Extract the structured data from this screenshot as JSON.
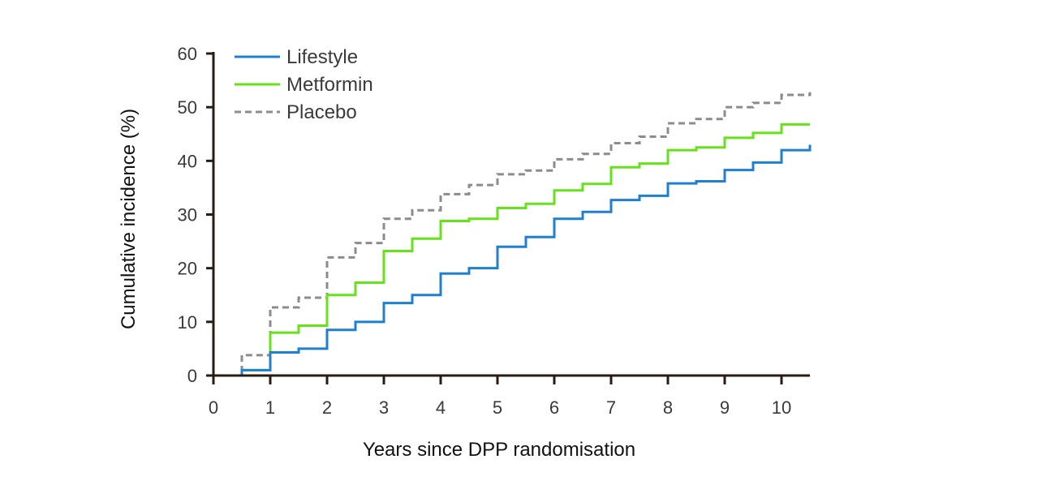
{
  "chart_data": {
    "type": "line",
    "step": true,
    "title": "",
    "xlabel": "Years since DPP randomisation",
    "ylabel": "Cumulative incidence (%)",
    "xlim": [
      0,
      10.5
    ],
    "ylim": [
      0,
      60
    ],
    "xticks": [
      0,
      1,
      2,
      3,
      4,
      5,
      6,
      7,
      8,
      9,
      10
    ],
    "yticks": [
      0,
      10,
      20,
      30,
      40,
      50,
      60
    ],
    "legend_position": "top-left",
    "grid": false,
    "series": [
      {
        "name": "Lifestyle",
        "color": "#1f7fd1",
        "dash": "solid",
        "points": [
          [
            0,
            0
          ],
          [
            0.5,
            1
          ],
          [
            1,
            4.3
          ],
          [
            1.5,
            5
          ],
          [
            2,
            8.5
          ],
          [
            2.5,
            10
          ],
          [
            3,
            13.5
          ],
          [
            3.5,
            15
          ],
          [
            4,
            19
          ],
          [
            4.5,
            20
          ],
          [
            5,
            24
          ],
          [
            5.5,
            25.8
          ],
          [
            6,
            29.2
          ],
          [
            6.5,
            30.5
          ],
          [
            7,
            32.7
          ],
          [
            7.5,
            33.5
          ],
          [
            8,
            35.8
          ],
          [
            8.5,
            36.2
          ],
          [
            9,
            38.3
          ],
          [
            9.5,
            39.7
          ],
          [
            10,
            42
          ],
          [
            10.5,
            43
          ]
        ]
      },
      {
        "name": "Metformin",
        "color": "#66e21a",
        "dash": "solid",
        "points": [
          [
            0,
            0
          ],
          [
            0.5,
            1
          ],
          [
            1,
            8
          ],
          [
            1.5,
            9.3
          ],
          [
            2,
            15
          ],
          [
            2.5,
            17.3
          ],
          [
            3,
            23.2
          ],
          [
            3.5,
            25.5
          ],
          [
            4,
            28.8
          ],
          [
            4.5,
            29.2
          ],
          [
            5,
            31.2
          ],
          [
            5.5,
            32
          ],
          [
            6,
            34.5
          ],
          [
            6.5,
            35.7
          ],
          [
            7,
            38.8
          ],
          [
            7.5,
            39.5
          ],
          [
            8,
            42
          ],
          [
            8.5,
            42.5
          ],
          [
            9,
            44.3
          ],
          [
            9.5,
            45.2
          ],
          [
            10,
            46.8
          ],
          [
            10.5,
            46.8
          ]
        ]
      },
      {
        "name": "Placebo",
        "color": "#8c8c8c",
        "dash": "dashed",
        "points": [
          [
            0,
            0
          ],
          [
            0.5,
            3.8
          ],
          [
            1,
            12.7
          ],
          [
            1.5,
            14.5
          ],
          [
            2,
            22
          ],
          [
            2.5,
            24.7
          ],
          [
            3,
            29.2
          ],
          [
            3.5,
            30.8
          ],
          [
            4,
            33.8
          ],
          [
            4.5,
            35.5
          ],
          [
            5,
            37.5
          ],
          [
            5.5,
            38.2
          ],
          [
            6,
            40.3
          ],
          [
            6.5,
            41.3
          ],
          [
            7,
            43.3
          ],
          [
            7.5,
            44.5
          ],
          [
            8,
            47
          ],
          [
            8.5,
            47.8
          ],
          [
            9,
            50
          ],
          [
            9.5,
            50.8
          ],
          [
            10,
            52.3
          ],
          [
            10.5,
            52.8
          ]
        ]
      }
    ]
  }
}
